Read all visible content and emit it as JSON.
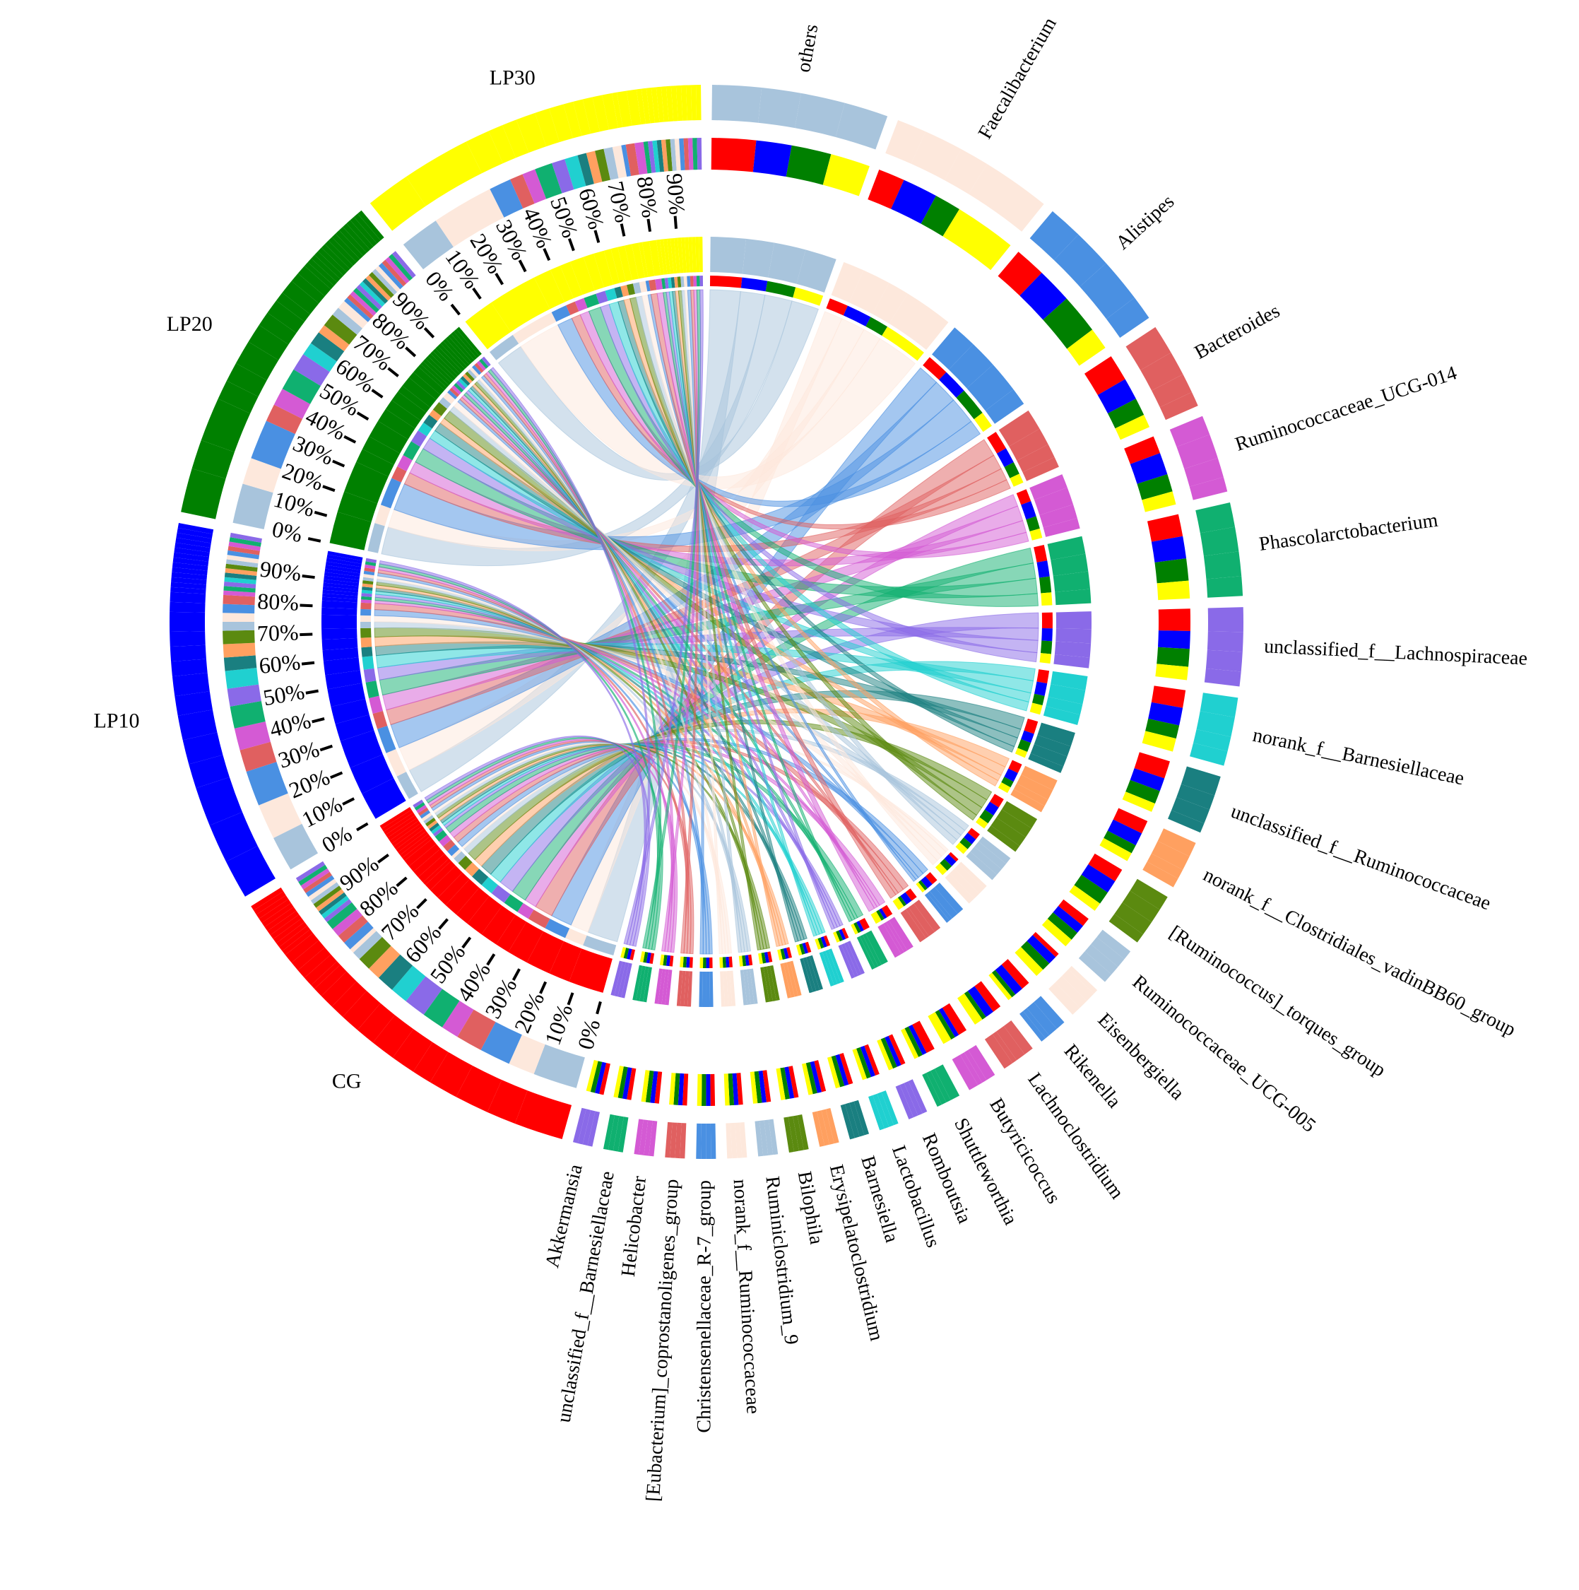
{
  "chart_data": {
    "type": "chord",
    "samples": [
      {
        "name": "CG",
        "color": "#ff0000"
      },
      {
        "name": "LP10",
        "color": "#0000ff"
      },
      {
        "name": "LP20",
        "color": "#008000"
      },
      {
        "name": "LP30",
        "color": "#ffff00"
      }
    ],
    "taxa": [
      {
        "name": "others",
        "color": "#a8c4dc"
      },
      {
        "name": "Faecalibacterium",
        "color": "#fde8dc"
      },
      {
        "name": "Alistipes",
        "color": "#4a90e2"
      },
      {
        "name": "Bacteroides",
        "color": "#e06060"
      },
      {
        "name": "Ruminococcaceae_UCG-014",
        "color": "#d45ad4"
      },
      {
        "name": "Phascolarctobacterium",
        "color": "#10b070"
      },
      {
        "name": "unclassified_f__Lachnospiraceae",
        "color": "#8a6ae8"
      },
      {
        "name": "norank_f__Barnesiellaceae",
        "color": "#20d0d0"
      },
      {
        "name": "unclassified_f__Ruminococcaceae",
        "color": "#1a7f80"
      },
      {
        "name": "norank_f__Clostridiales_vadinBB60_group",
        "color": "#ffa060"
      },
      {
        "name": "[Ruminococcus]_torques_group",
        "color": "#5b8a10"
      },
      {
        "name": "Ruminococcaceae_UCG-005",
        "color": "#a8c4dc"
      },
      {
        "name": "Eisenbergiella",
        "color": "#fde8dc"
      },
      {
        "name": "Rikenella",
        "color": "#4a90e2"
      },
      {
        "name": "Lachnoclostridium",
        "color": "#e06060"
      },
      {
        "name": "Butyricicoccus",
        "color": "#d45ad4"
      },
      {
        "name": "Shuttleworthia",
        "color": "#10b070"
      },
      {
        "name": "Romboutsia",
        "color": "#8a6ae8"
      },
      {
        "name": "Lactobacillus",
        "color": "#20d0d0"
      },
      {
        "name": "Barnesiella",
        "color": "#1a7f80"
      },
      {
        "name": "Erysipelatoclostridium",
        "color": "#ffa060"
      },
      {
        "name": "Bilophila",
        "color": "#5b8a10"
      },
      {
        "name": "Ruminiclostridium_9",
        "color": "#a8c4dc"
      },
      {
        "name": "norank_f__Ruminococcaceae",
        "color": "#fde8dc"
      },
      {
        "name": "Christensenellaceae_R-7_group",
        "color": "#4a90e2"
      },
      {
        "name": "[Eubacterium]_coprostanoligenes_group",
        "color": "#e06060"
      },
      {
        "name": "Helicobacter",
        "color": "#d45ad4"
      },
      {
        "name": "unclassified_f__Barnesiellaceae",
        "color": "#10b070"
      },
      {
        "name": "Akkermansia",
        "color": "#8a6ae8"
      }
    ],
    "matrix": [
      [
        10,
        8,
        9,
        9
      ],
      [
        6,
        8,
        6,
        14
      ],
      [
        7,
        8,
        9,
        5
      ],
      [
        6,
        5,
        4,
        3
      ],
      [
        4,
        5,
        4,
        3
      ],
      [
        5,
        5,
        5,
        4
      ],
      [
        5,
        4,
        4,
        3
      ],
      [
        4,
        4,
        3,
        3
      ],
      [
        4,
        3,
        3,
        2
      ],
      [
        3,
        3,
        2,
        2
      ],
      [
        3,
        3,
        3,
        2
      ],
      [
        2,
        2,
        2,
        2
      ],
      [
        1,
        2,
        2,
        2
      ],
      [
        2,
        2,
        1,
        1
      ],
      [
        2,
        2,
        1,
        2
      ],
      [
        2,
        1,
        1,
        2
      ],
      [
        2,
        1,
        1,
        1
      ],
      [
        1,
        1,
        1,
        1
      ],
      [
        1,
        1,
        1,
        1
      ],
      [
        1,
        1,
        1,
        1
      ],
      [
        1,
        1,
        1,
        1
      ],
      [
        1,
        1,
        1,
        1
      ],
      [
        1,
        1,
        1,
        1
      ],
      [
        1,
        1,
        1,
        1
      ],
      [
        1,
        1,
        1,
        1
      ],
      [
        1,
        1,
        1,
        1
      ],
      [
        1,
        1,
        1,
        1
      ],
      [
        1,
        1,
        1,
        1
      ],
      [
        1,
        1,
        1,
        1
      ]
    ],
    "percent_ticks": [
      {
        "value": 0,
        "label": "0%"
      },
      {
        "value": 10,
        "label": "10%"
      },
      {
        "value": 20,
        "label": "20%"
      },
      {
        "value": 30,
        "label": "30%"
      },
      {
        "value": 40,
        "label": "40%"
      },
      {
        "value": 50,
        "label": "50%"
      },
      {
        "value": 60,
        "label": "60%"
      },
      {
        "value": 70,
        "label": "70%"
      },
      {
        "value": 80,
        "label": "80%"
      },
      {
        "value": 90,
        "label": "90%"
      }
    ]
  }
}
